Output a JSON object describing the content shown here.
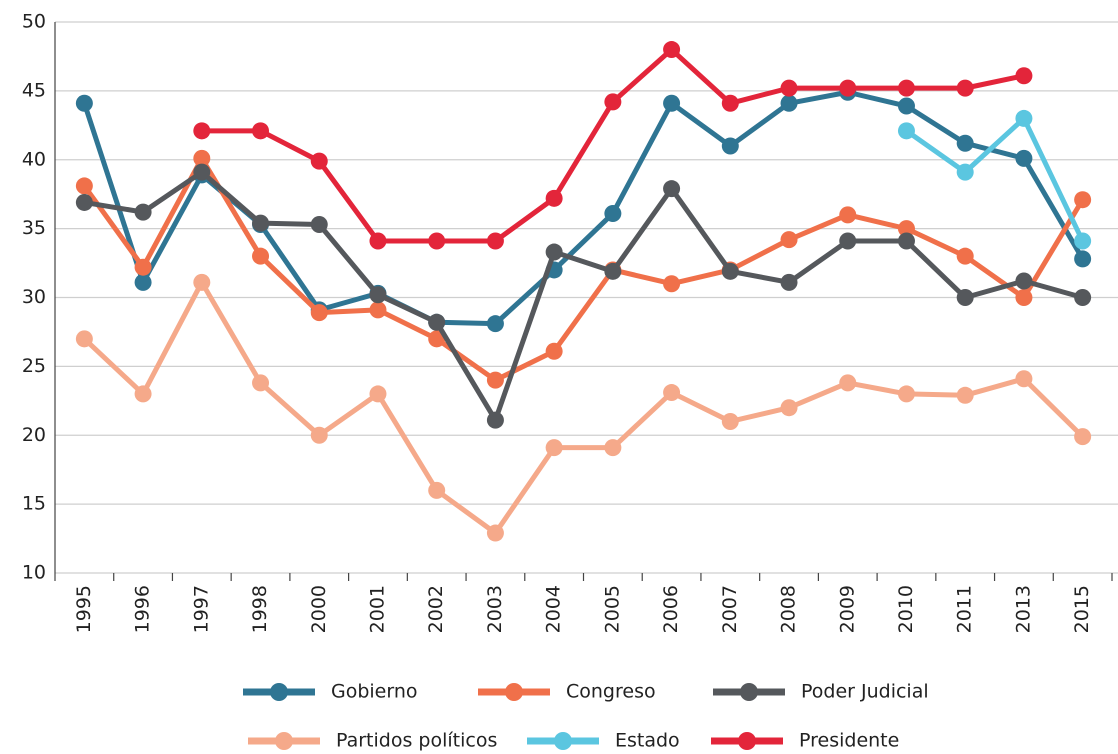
{
  "chart_data": {
    "type": "line",
    "categories": [
      "1995",
      "1996",
      "1997",
      "1998",
      "2000",
      "2001",
      "2002",
      "2003",
      "2004",
      "2005",
      "2006",
      "2007",
      "2008",
      "2009",
      "2010",
      "2011",
      "2013",
      "2015"
    ],
    "series": [
      {
        "name": "Gobierno",
        "color": "#2f7593",
        "values": [
          44.1,
          31.1,
          38.9,
          35.3,
          29.1,
          30.3,
          28.2,
          28.1,
          32,
          36.1,
          44.1,
          41,
          44.1,
          44.9,
          43.9,
          41.2,
          40.1,
          32.8
        ]
      },
      {
        "name": "Congreso",
        "color": "#f0704a",
        "values": [
          38.1,
          32.2,
          40.1,
          33,
          28.9,
          29.1,
          27,
          24,
          26.1,
          32,
          31,
          32,
          34.2,
          36,
          35,
          33,
          30,
          37.1
        ]
      },
      {
        "name": "Poder Judicial",
        "color": "#55585c",
        "values": [
          36.9,
          36.2,
          39.1,
          35.4,
          35.3,
          30.2,
          28.2,
          21.1,
          33.3,
          31.9,
          37.9,
          31.9,
          31.1,
          34.1,
          34.1,
          30,
          31.2,
          30
        ]
      },
      {
        "name": "Partidos políticos",
        "color": "#f5a98a",
        "values": [
          27,
          23,
          31.1,
          23.8,
          20,
          23,
          16,
          12.9,
          19.1,
          19.1,
          23.1,
          21,
          22,
          23.8,
          23,
          22.9,
          24.1,
          19.9
        ]
      },
      {
        "name": "Estado",
        "color": "#5bc6e0",
        "values": [
          null,
          null,
          null,
          null,
          null,
          null,
          null,
          null,
          null,
          null,
          null,
          null,
          null,
          null,
          42.1,
          39.1,
          43,
          34.1
        ]
      },
      {
        "name": "Presidente",
        "color": "#e3253a",
        "values": [
          null,
          null,
          42.1,
          42.1,
          39.9,
          34.1,
          34.1,
          34.1,
          37.2,
          44.2,
          48,
          44.1,
          45.2,
          45.2,
          45.2,
          45.2,
          46.1,
          null
        ]
      }
    ],
    "ylim": [
      10,
      50
    ],
    "yticks": [
      10,
      15,
      20,
      25,
      30,
      35,
      40,
      45,
      50
    ],
    "grid": true
  }
}
